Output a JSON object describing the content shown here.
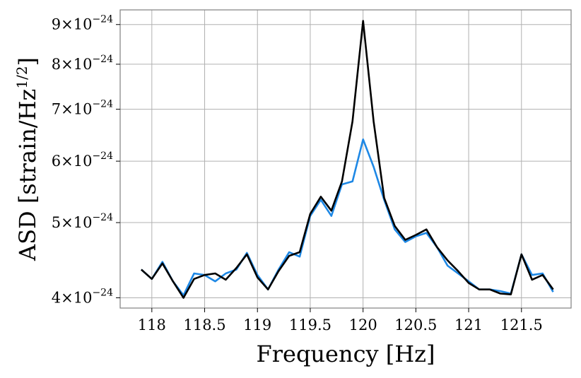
{
  "chart_data": {
    "type": "line",
    "xlabel": "Frequency [Hz]",
    "ylabel": "ASD [strain/Hz",
    "ylabel_sup": "1/2",
    "ylabel_close": "]",
    "xlim": [
      117.7,
      121.97
    ],
    "ylim": [
      3.88e-24,
      9.4e-24
    ],
    "yscale": "log",
    "grid": true,
    "xticks": [
      {
        "value": 118,
        "label": "118"
      },
      {
        "value": 118.5,
        "label": "118.5"
      },
      {
        "value": 119,
        "label": "119"
      },
      {
        "value": 119.5,
        "label": "119.5"
      },
      {
        "value": 120,
        "label": "120"
      },
      {
        "value": 120.5,
        "label": "120.5"
      },
      {
        "value": 121,
        "label": "121"
      },
      {
        "value": 121.5,
        "label": "121.5"
      }
    ],
    "yticks": [
      {
        "value": 4e-24,
        "mant": "4",
        "exp": "−24"
      },
      {
        "value": 5e-24,
        "mant": "5",
        "exp": "−24"
      },
      {
        "value": 6e-24,
        "mant": "6",
        "exp": "−24"
      },
      {
        "value": 7e-24,
        "mant": "7",
        "exp": "−24"
      },
      {
        "value": 8e-24,
        "mant": "8",
        "exp": "−24"
      },
      {
        "value": 9e-24,
        "mant": "9",
        "exp": "−24"
      }
    ],
    "x": [
      117.9,
      118.0,
      118.1,
      118.2,
      118.3,
      118.4,
      118.5,
      118.6,
      118.7,
      118.8,
      118.9,
      119.0,
      119.1,
      119.2,
      119.3,
      119.4,
      119.5,
      119.6,
      119.7,
      119.8,
      119.9,
      120.0,
      120.1,
      120.2,
      120.3,
      120.4,
      120.5,
      120.6,
      120.7,
      120.8,
      120.9,
      121.0,
      121.1,
      121.2,
      121.3,
      121.4,
      121.5,
      121.6,
      121.7,
      121.8
    ],
    "series": [
      {
        "color": "#1e88e5",
        "values": [
          4.35e-24,
          4.23e-24,
          4.45e-24,
          4.2e-24,
          4.03e-24,
          4.3e-24,
          4.28e-24,
          4.2e-24,
          4.3e-24,
          4.35e-24,
          4.57e-24,
          4.28e-24,
          4.1e-24,
          4.35e-24,
          4.58e-24,
          4.52e-24,
          5.1e-24,
          5.35e-24,
          5.1e-24,
          5.6e-24,
          5.65e-24,
          6.4e-24,
          5.9e-24,
          5.35e-24,
          4.9e-24,
          4.72e-24,
          4.8e-24,
          4.85e-24,
          4.65e-24,
          4.4e-24,
          4.3e-24,
          4.2e-24,
          4.1e-24,
          4.1e-24,
          4.08e-24,
          4.05e-24,
          4.55e-24,
          4.28e-24,
          4.3e-24,
          4.07e-24
        ]
      },
      {
        "color": "#000000",
        "values": [
          4.35e-24,
          4.23e-24,
          4.43e-24,
          4.2e-24,
          4e-24,
          4.23e-24,
          4.28e-24,
          4.3e-24,
          4.22e-24,
          4.37e-24,
          4.55e-24,
          4.25e-24,
          4.1e-24,
          4.33e-24,
          4.53e-24,
          4.58e-24,
          5.13e-24,
          5.4e-24,
          5.18e-24,
          5.65e-24,
          6.75e-24,
          9.1e-24,
          6.75e-24,
          5.38e-24,
          4.95e-24,
          4.75e-24,
          4.82e-24,
          4.9e-24,
          4.65e-24,
          4.47e-24,
          4.33e-24,
          4.18e-24,
          4.1e-24,
          4.1e-24,
          4.05e-24,
          4.04e-24,
          4.55e-24,
          4.22e-24,
          4.28e-24,
          4.1e-24
        ]
      }
    ]
  }
}
